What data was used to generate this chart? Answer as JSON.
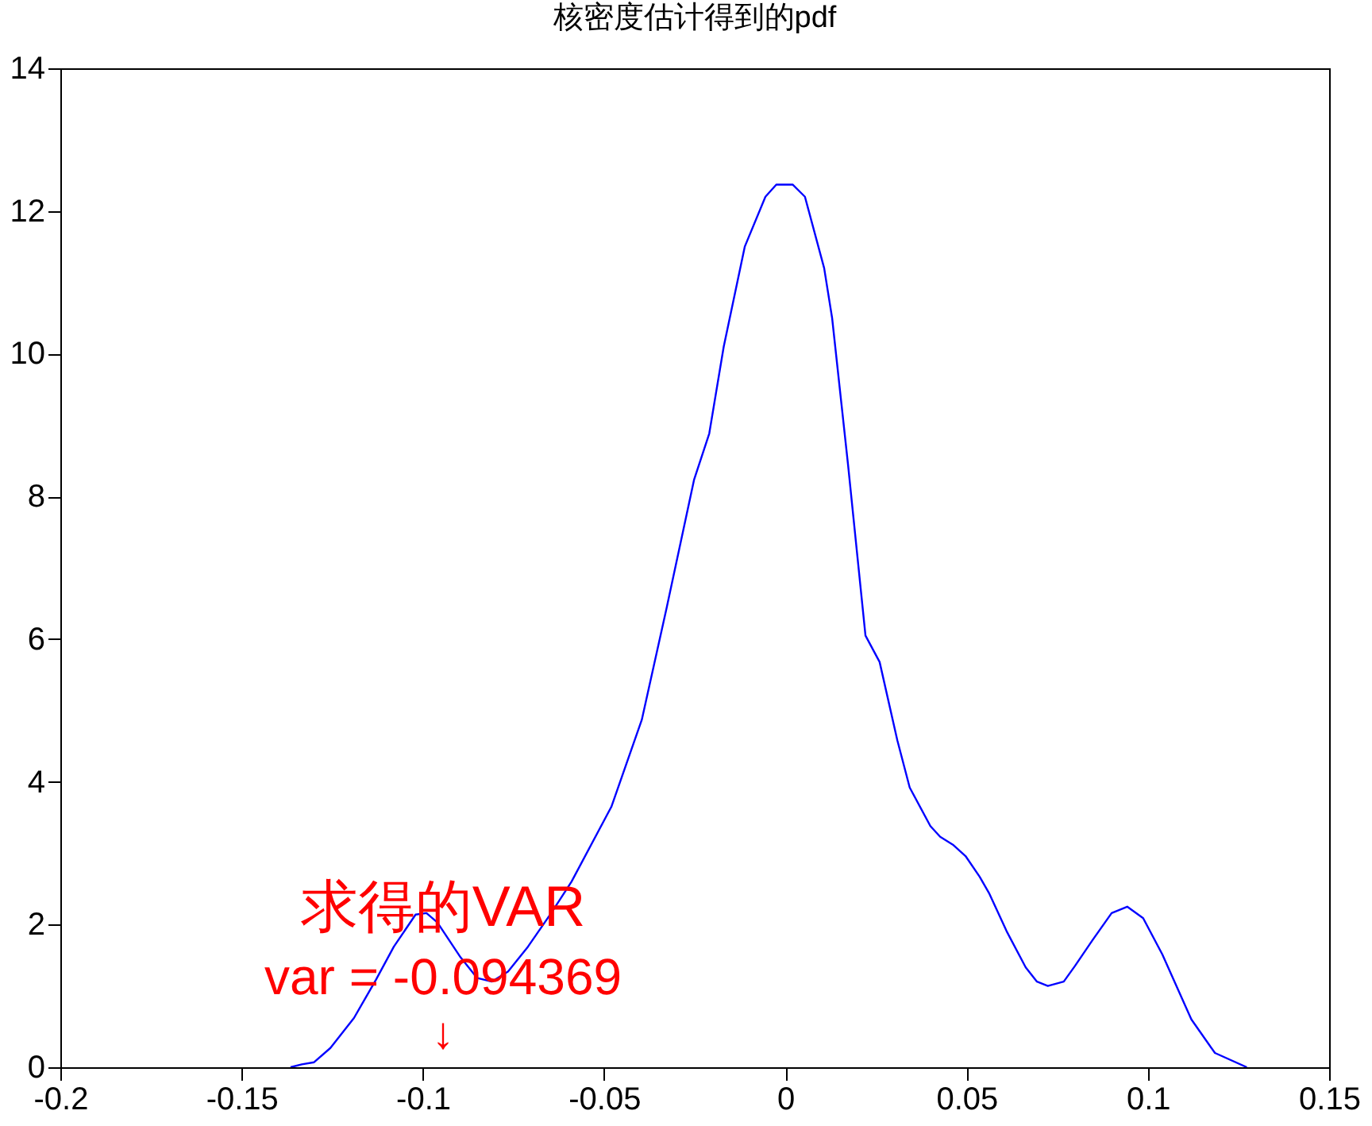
{
  "chart_data": {
    "type": "line",
    "title": "核密度估计得到的pdf",
    "x": [
      -0.1365,
      -0.1334,
      -0.13,
      -0.1255,
      -0.119,
      -0.113,
      -0.108,
      -0.102,
      -0.099,
      -0.096,
      -0.0896,
      -0.085,
      -0.081,
      -0.0765,
      -0.071,
      -0.0646,
      -0.059,
      -0.048,
      -0.0396,
      -0.0327,
      -0.0252,
      -0.021,
      -0.017,
      -0.0112,
      -0.0055,
      -0.0025,
      0.002,
      0.0054,
      0.0107,
      0.0129,
      0.0173,
      0.0221,
      0.026,
      0.0309,
      0.0343,
      0.04,
      0.0427,
      0.0462,
      0.0497,
      0.0536,
      0.0563,
      0.061,
      0.0663,
      0.0694,
      0.0724,
      0.0768,
      0.0799,
      0.0847,
      0.09,
      0.0943,
      0.0987,
      0.104,
      0.112,
      0.1185,
      0.1273
    ],
    "series": [
      {
        "color": "#0000ff",
        "values": [
          0,
          0.04,
          0.07,
          0.27,
          0.69,
          1.22,
          1.69,
          2.14,
          2.16,
          2.03,
          1.54,
          1.25,
          1.2,
          1.34,
          1.69,
          2.16,
          2.6,
          3.65,
          4.87,
          6.45,
          8.23,
          8.88,
          10.1,
          11.5,
          12.2,
          12.37,
          12.37,
          12.2,
          11.2,
          10.5,
          8.44,
          6.05,
          5.68,
          4.58,
          3.92,
          3.38,
          3.23,
          3.12,
          2.96,
          2.67,
          2.43,
          1.91,
          1.4,
          1.2,
          1.14,
          1.2,
          1.42,
          1.78,
          2.16,
          2.25,
          2.09,
          1.58,
          0.67,
          0.2,
          0
        ]
      }
    ],
    "xlim": [
      -0.2,
      0.15
    ],
    "xticks": [
      -0.2,
      -0.15,
      -0.1,
      -0.05,
      0,
      0.05,
      0.1,
      0.15
    ],
    "ylim": [
      0,
      14
    ],
    "yticks": [
      0,
      2,
      4,
      6,
      8,
      10,
      12,
      14
    ],
    "grid": false,
    "marker": "none",
    "line_style": "solid",
    "annotations": [
      "求得的VAR",
      "var = -0.094369",
      "↓"
    ]
  }
}
